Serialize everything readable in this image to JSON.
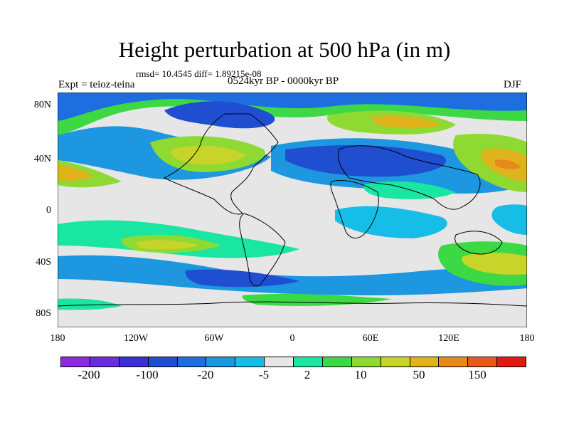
{
  "title": "Height perturbation at 500 hPa (in m)",
  "stats": "rmsd= 10.4545 diff= 1.89215e-08",
  "experiment": "Expt = teioz-teina",
  "period": "0524kyr BP - 0000kyr BP",
  "season": "DJF",
  "map": {
    "latitude_labels": [
      "80N",
      "40N",
      "0",
      "40S",
      "80S"
    ],
    "longitude_labels": [
      "180",
      "120W",
      "60W",
      "0",
      "60E",
      "120E",
      "180"
    ],
    "lon_range": [
      -180,
      180
    ],
    "lat_range": [
      -90,
      90
    ]
  },
  "colorbar": {
    "colors": [
      "#8a2be2",
      "#6a2ee0",
      "#3b2fd6",
      "#1f4fd0",
      "#1e6ee0",
      "#1c97e0",
      "#16bde6",
      "#e6e6e6",
      "#19e6a0",
      "#3dd944",
      "#8fd933",
      "#c8d42a",
      "#e0b21c",
      "#e8891c",
      "#e85a1c",
      "#e01a10"
    ],
    "labels": [
      "-200",
      "-100",
      "-20",
      "-5",
      "2",
      "10",
      "50",
      "150"
    ]
  }
}
